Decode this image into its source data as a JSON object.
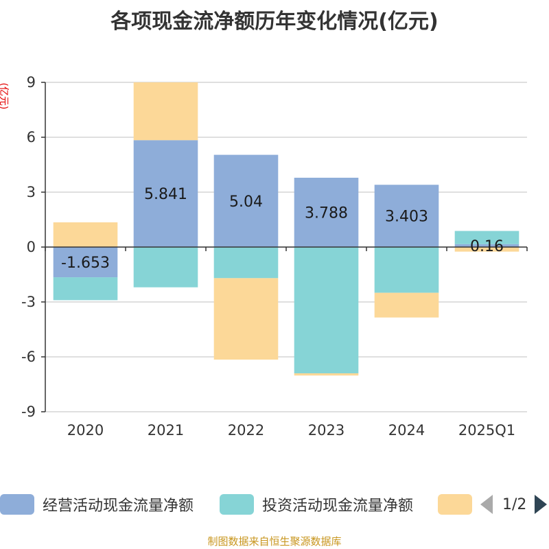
{
  "chart_data": {
    "type": "bar",
    "stacked": true,
    "title": "各项现金流净额历年变化情况(亿元)",
    "ylabel": "(亿元)",
    "categories": [
      "2020",
      "2021",
      "2022",
      "2023",
      "2024",
      "2025Q1"
    ],
    "ylim": [
      -9,
      9
    ],
    "yticks": [
      -9,
      -6,
      -3,
      0,
      3,
      6,
      9
    ],
    "grid": true,
    "legend_position": "bottom",
    "series": [
      {
        "name": "经营活动现金流量净额",
        "color": "#8eadd9",
        "values": [
          -1.653,
          5.841,
          5.04,
          3.788,
          3.403,
          0.16
        ],
        "labels": [
          "-1.653",
          "5.841",
          "5.04",
          "3.788",
          "3.403",
          "0.16"
        ]
      },
      {
        "name": "投资活动现金流量净额",
        "color": "#86d4d6",
        "values": [
          -1.25,
          -2.2,
          -1.7,
          -6.9,
          -2.5,
          0.72
        ]
      },
      {
        "name": "",
        "color": "#fcd898",
        "values": [
          1.35,
          3.16,
          -4.45,
          -0.12,
          -1.35,
          -0.25
        ]
      }
    ]
  },
  "legend": {
    "pager_text": "1/2"
  },
  "source": "制图数据来自恒生聚源数据库"
}
